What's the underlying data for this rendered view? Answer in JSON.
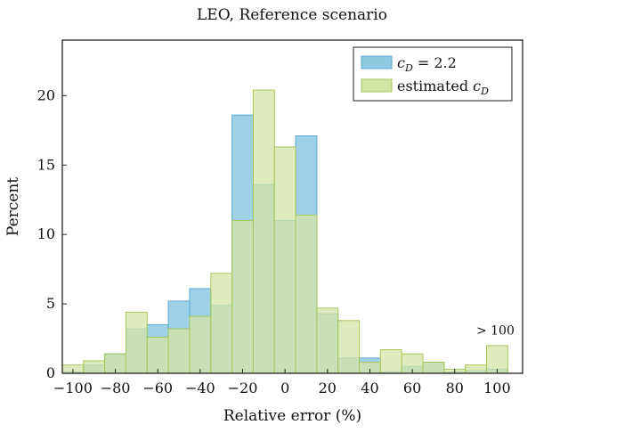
{
  "chart_data": {
    "type": "bar",
    "title": "LEO, Reference scenario",
    "xlabel": "Relative error (%)",
    "ylabel": "Percent",
    "xlim": [
      -105,
      112
    ],
    "ylim": [
      0,
      24
    ],
    "xticks": [
      -100,
      -80,
      -60,
      -40,
      -20,
      0,
      20,
      40,
      60,
      80,
      100
    ],
    "xtick_labels": [
      "−100",
      "−80",
      "−60",
      "−40",
      "−20",
      "0",
      "20",
      "40",
      "60",
      "80",
      "100"
    ],
    "yticks": [
      0,
      5,
      10,
      15,
      20
    ],
    "ytick_labels": [
      "0",
      "5",
      "10",
      "15",
      "20"
    ],
    "grid": false,
    "legend_position": "top-right",
    "bin_edges": [
      -105,
      -95,
      -85,
      -75,
      -65,
      -55,
      -45,
      -35,
      -25,
      -15,
      -5,
      5,
      15,
      25,
      35,
      45,
      55,
      65,
      75,
      85,
      95,
      105
    ],
    "series": [
      {
        "name": "cD = 2.2",
        "color": "#8ec9e2",
        "edge_color": "#5aa9d0",
        "values": [
          0.1,
          0.6,
          1.4,
          3.2,
          3.5,
          5.2,
          6.1,
          4.9,
          18.6,
          13.6,
          11.0,
          17.1,
          4.3,
          1.1,
          1.1,
          0.1,
          0.5,
          0.8,
          0.1,
          0.2,
          0.3,
          0.3
        ]
      },
      {
        "name": "estimated cD",
        "color": "#d4e4a6",
        "edge_color": "#a9c75a",
        "values": [
          0.6,
          0.9,
          1.4,
          4.4,
          2.6,
          3.2,
          4.1,
          7.2,
          11.0,
          20.4,
          16.3,
          11.4,
          4.7,
          3.8,
          0.8,
          1.7,
          1.4,
          0.8,
          0.3,
          0.6,
          2.0,
          0
        ]
      }
    ],
    "annotations": [
      {
        "text": "> 100",
        "x": 100,
        "y": 2.8
      }
    ]
  }
}
